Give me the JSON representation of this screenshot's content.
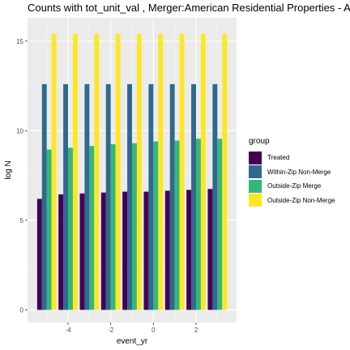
{
  "chart_data": {
    "type": "bar",
    "title": "Counts with tot_unit_val , Merger:American Residential Properties - A",
    "xlabel": "event_yr",
    "ylabel": "log N",
    "x": [
      -5,
      -4,
      -3,
      -2,
      -1,
      0,
      1,
      2,
      3
    ],
    "xticks": [
      -4,
      -2,
      0,
      2
    ],
    "yticks": [
      0,
      5,
      10,
      15
    ],
    "ylim": [
      0,
      15.5
    ],
    "grid": true,
    "legend_title": "group",
    "legend_position": "right",
    "series": [
      {
        "name": "Treated",
        "color": "#440154",
        "values": [
          6.2,
          6.45,
          6.5,
          6.55,
          6.6,
          6.6,
          6.65,
          6.7,
          6.75
        ]
      },
      {
        "name": "Within-Zip Non-Merge",
        "color": "#31688E",
        "values": [
          12.6,
          12.6,
          12.6,
          12.6,
          12.6,
          12.6,
          12.6,
          12.6,
          12.6
        ]
      },
      {
        "name": "Outside-Zip Merge",
        "color": "#35B779",
        "values": [
          8.95,
          9.05,
          9.15,
          9.25,
          9.3,
          9.4,
          9.45,
          9.55,
          9.55
        ]
      },
      {
        "name": "Outside-Zip Non-Merge",
        "color": "#FDE725",
        "values": [
          15.4,
          15.4,
          15.4,
          15.4,
          15.4,
          15.4,
          15.4,
          15.4,
          15.4
        ]
      }
    ]
  }
}
